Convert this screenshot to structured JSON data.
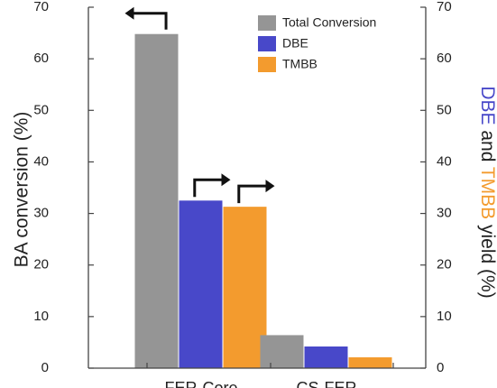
{
  "chart_data": {
    "type": "bar",
    "categories": [
      "FER-Core",
      "CS-FER"
    ],
    "series": [
      {
        "name": "Total Conversion",
        "values": [
          64.8,
          6.4
        ],
        "color": "#959595",
        "axis": "left"
      },
      {
        "name": "DBE",
        "values": [
          32.5,
          4.2
        ],
        "color": "#4848c9",
        "axis": "right"
      },
      {
        "name": "TMBB",
        "values": [
          31.3,
          2.1
        ],
        "color": "#f39b2e",
        "axis": "right"
      }
    ],
    "ylabel": "BA conversion (%)",
    "y2label_parts": [
      {
        "text": "DBE",
        "color": "#4848c9"
      },
      {
        "text": " and ",
        "color": "#222222"
      },
      {
        "text": "TMBB",
        "color": "#f39b2e"
      },
      {
        "text": " yield (%)",
        "color": "#222222"
      }
    ],
    "ylim": [
      0,
      70
    ],
    "y2lim": [
      0,
      70
    ],
    "yticks": [
      0,
      10,
      20,
      30,
      40,
      50,
      60,
      70
    ],
    "y2ticks": [
      0,
      10,
      20,
      30,
      40,
      50,
      60,
      70
    ],
    "legend_position": "top-right",
    "grid": false,
    "annotations": [
      {
        "type": "arrow",
        "direction": "left",
        "target": "Total Conversion / FER-Core"
      },
      {
        "type": "arrow",
        "direction": "right",
        "target": "DBE / FER-Core"
      },
      {
        "type": "arrow",
        "direction": "right",
        "target": "TMBB / FER-Core"
      }
    ]
  }
}
